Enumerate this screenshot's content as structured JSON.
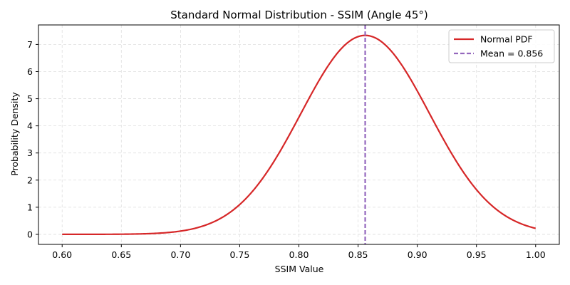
{
  "chart_data": {
    "type": "line",
    "title": "Standard Normal Distribution - SSIM (Angle 45°)",
    "xlabel": "SSIM Value",
    "ylabel": "Probability Density",
    "xlim": [
      0.58,
      1.02
    ],
    "ylim": [
      -0.37,
      7.72
    ],
    "x_ticks": [
      "0.60",
      "0.65",
      "0.70",
      "0.75",
      "0.80",
      "0.85",
      "0.90",
      "0.95",
      "1.00"
    ],
    "y_ticks": [
      "0",
      "1",
      "2",
      "3",
      "4",
      "5",
      "6",
      "7"
    ],
    "grid": true,
    "legend_position": "top-right",
    "series": [
      {
        "name": "Normal PDF",
        "color": "#d62728",
        "style": "solid",
        "distribution": {
          "mean": 0.856,
          "std": 0.0544,
          "x_range": [
            0.6,
            1.0
          ]
        }
      }
    ],
    "reference_lines": [
      {
        "name": "Mean = 0.856",
        "x": 0.856,
        "color": "#9467bd",
        "style": "dashed"
      }
    ]
  }
}
